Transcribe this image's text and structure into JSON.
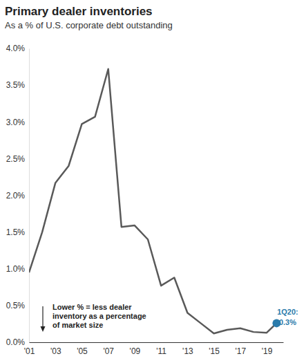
{
  "chart_data": {
    "type": "line",
    "title": "Primary dealer inventories",
    "subtitle": "As a % of U.S. corporate debt outstanding",
    "x": [
      2001,
      2002,
      2003,
      2004,
      2005,
      2006,
      2007,
      2008,
      2009,
      2010,
      2011,
      2012,
      2013,
      2014,
      2015,
      2016,
      2017,
      2018,
      2019,
      2019.75
    ],
    "series": [
      {
        "color": "#595959",
        "values": [
          0.95,
          1.5,
          2.17,
          2.4,
          2.97,
          3.07,
          3.72,
          1.57,
          1.59,
          1.4,
          0.77,
          0.88,
          0.4,
          0.26,
          0.12,
          0.17,
          0.19,
          0.14,
          0.13,
          0.26
        ]
      },
      {
        "type": "scatter",
        "marker": "circle",
        "color": "#2b7bab",
        "values": [
          null,
          null,
          null,
          null,
          null,
          null,
          null,
          null,
          null,
          null,
          null,
          null,
          null,
          null,
          null,
          null,
          null,
          null,
          null,
          0.26
        ]
      }
    ],
    "xlim": [
      2001,
      2020.25
    ],
    "xticks": [
      {
        "value": 2001,
        "label": "'01"
      },
      {
        "value": 2003,
        "label": "'03"
      },
      {
        "value": 2005,
        "label": "'05"
      },
      {
        "value": 2007,
        "label": "'07"
      },
      {
        "value": 2009,
        "label": "'09"
      },
      {
        "value": 2011,
        "label": "'11"
      },
      {
        "value": 2013,
        "label": "'13"
      },
      {
        "value": 2015,
        "label": "'15"
      },
      {
        "value": 2017,
        "label": "'17"
      },
      {
        "value": 2019,
        "label": "'19"
      }
    ],
    "ylim": [
      0,
      4
    ],
    "yticks": [
      {
        "value": 0,
        "label": "0.0%"
      },
      {
        "value": 0.5,
        "label": "0.5%"
      },
      {
        "value": 1,
        "label": "1.0%"
      },
      {
        "value": 1.5,
        "label": "1.5%"
      },
      {
        "value": 2,
        "label": "2.0%"
      },
      {
        "value": 2.5,
        "label": "2.5%"
      },
      {
        "value": 3,
        "label": "3.0%"
      },
      {
        "value": 3.5,
        "label": "3.5%"
      },
      {
        "value": 4,
        "label": "4.0%"
      }
    ],
    "grid": false,
    "annotations": [
      [
        "Lower % = less dealer",
        "inventory as a percentage",
        "of market size"
      ],
      [
        "1Q20:",
        "0.3%"
      ]
    ]
  }
}
